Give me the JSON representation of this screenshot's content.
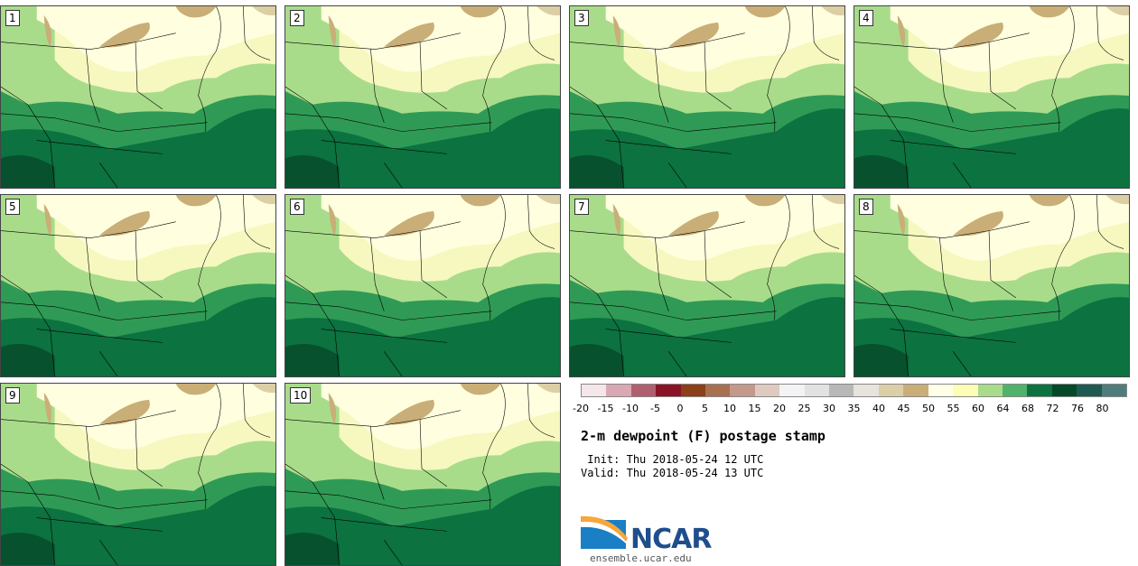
{
  "title": "2-m dewpoint (F) postage stamp",
  "init_label": " Init:",
  "init_value": "Thu 2018-05-24 12 UTC",
  "valid_label": "Valid:",
  "valid_value": "Thu 2018-05-24 13 UTC",
  "logo_text": "NCAR",
  "url": "ensemble.ucar.edu",
  "members": [
    "1",
    "2",
    "3",
    "4",
    "5",
    "6",
    "7",
    "8",
    "9",
    "10"
  ],
  "colorbar": {
    "ticks": [
      "-20",
      "-15",
      "-10",
      "-5",
      "0",
      "5",
      "10",
      "15",
      "20",
      "25",
      "30",
      "35",
      "40",
      "45",
      "50",
      "55",
      "60",
      "64",
      "68",
      "72",
      "76",
      "80"
    ],
    "colors": [
      "#f5e6ea",
      "#d9a8b4",
      "#b15e6e",
      "#8a1426",
      "#8c3f18",
      "#a87050",
      "#c4988a",
      "#decabe",
      "#f3f3f5",
      "#e2e2e2",
      "#b8b8b8",
      "#e6e4dc",
      "#dccfa6",
      "#c9ae78",
      "#ffffe8",
      "#fdfdb8",
      "#a9dc8a",
      "#4fb36c",
      "#0c7240",
      "#06482a",
      "#1e5a52",
      "#4f7d7c"
    ]
  }
}
